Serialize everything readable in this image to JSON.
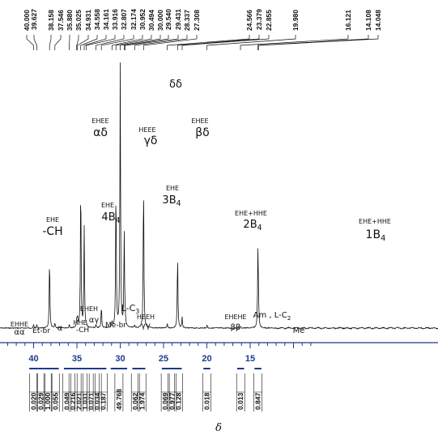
{
  "chart_data": {
    "type": "line",
    "xlabel": "δ",
    "xlim": [
      43,
      7.5
    ],
    "axis_ticks": [
      40,
      35,
      30,
      25,
      20,
      15
    ],
    "top_peak_labels": [
      "40.000",
      "39.627",
      "38.158",
      "37.546",
      "35.880",
      "35.025",
      "34.931",
      "34.558",
      "34.161",
      "33.916",
      "32.807",
      "32.174",
      "30.952",
      "30.494",
      "30.000",
      "29.540",
      "29.431",
      "28.337",
      "27.308",
      "24.566",
      "23.379",
      "22.855",
      "19.980",
      "16.121",
      "14.108",
      "14.048"
    ],
    "peaks": [
      {
        "x": 40.0,
        "y": 0.014
      },
      {
        "x": 39.627,
        "y": 0.012
      },
      {
        "x": 38.158,
        "y": 0.29
      },
      {
        "x": 37.546,
        "y": 0.02
      },
      {
        "x": 35.88,
        "y": 0.014
      },
      {
        "x": 35.025,
        "y": 0.035
      },
      {
        "x": 34.931,
        "y": 0.04
      },
      {
        "x": 34.558,
        "y": 0.62
      },
      {
        "x": 34.161,
        "y": 0.42
      },
      {
        "x": 33.916,
        "y": 0.012
      },
      {
        "x": 32.807,
        "y": 0.012
      },
      {
        "x": 32.174,
        "y": 0.09
      },
      {
        "x": 30.952,
        "y": 0.025
      },
      {
        "x": 30.494,
        "y": 0.6
      },
      {
        "x": 30.0,
        "y": 1.1
      },
      {
        "x": 29.54,
        "y": 0.4
      },
      {
        "x": 29.431,
        "y": 0.03
      },
      {
        "x": 28.337,
        "y": 0.012
      },
      {
        "x": 27.308,
        "y": 0.62
      },
      {
        "x": 24.566,
        "y": 0.018
      },
      {
        "x": 23.379,
        "y": 0.3
      },
      {
        "x": 22.855,
        "y": 0.045
      },
      {
        "x": 19.98,
        "y": 0.012
      },
      {
        "x": 16.121,
        "y": 0.008
      },
      {
        "x": 14.108,
        "y": 0.3
      },
      {
        "x": 14.048,
        "y": 0.1
      }
    ],
    "peak_assignments": [
      {
        "x": 40.0,
        "triad": "EHHE",
        "label": "αα"
      },
      {
        "x": 39.0,
        "triad": "",
        "label": "Et-br"
      },
      {
        "x": 37.6,
        "triad": "",
        "label": "α"
      },
      {
        "x": 38.2,
        "triad": "EHE",
        "label": "-CH"
      },
      {
        "x": 35.9,
        "triad": "HHE",
        "label": "-CH"
      },
      {
        "x": 35.0,
        "triad": "EHEH",
        "label": "αγ"
      },
      {
        "x": 33.6,
        "triad": "",
        "label": "Me-br"
      },
      {
        "x": 34.56,
        "triad": "EHEE",
        "label": "αδ"
      },
      {
        "x": 34.16,
        "triad": "EHE",
        "label": "4B4"
      },
      {
        "x": 32.2,
        "triad": "",
        "label": "L-C3"
      },
      {
        "x": 31.0,
        "triad": "HEEH",
        "label": "γγ"
      },
      {
        "x": 30.5,
        "triad": "HEEE",
        "label": "γδ"
      },
      {
        "x": 30.0,
        "triad": "",
        "label": "δδ"
      },
      {
        "x": 29.54,
        "triad": "EHE",
        "label": "3B4"
      },
      {
        "x": 27.3,
        "triad": "EHEE",
        "label": "βδ"
      },
      {
        "x": 24.6,
        "triad": "EHEHE",
        "label": "ββ"
      },
      {
        "x": 23.4,
        "triad": "EHE+HHE",
        "label": "2B4"
      },
      {
        "x": 22.0,
        "triad": "",
        "label": "Am , L-C2"
      },
      {
        "x": 20.0,
        "triad": "",
        "label": "Me"
      },
      {
        "x": 14.1,
        "triad": "EHE+HHE",
        "label": "1B4"
      }
    ],
    "integrals": [
      {
        "x1": 40.5,
        "x2": 39.5,
        "value": "0.020"
      },
      {
        "x1": 39.5,
        "x2": 38.8,
        "value": "0.029"
      },
      {
        "x1": 38.8,
        "x2": 37.9,
        "value": "1.000"
      },
      {
        "x1": 37.9,
        "x2": 37.1,
        "value": "0.055"
      },
      {
        "x1": 36.5,
        "x2": 35.8,
        "value": "0.049"
      },
      {
        "x1": 35.8,
        "x2": 35.1,
        "value": "0.216"
      },
      {
        "x1": 35.1,
        "x2": 34.4,
        "value": "2.021"
      },
      {
        "x1": 34.4,
        "x2": 33.7,
        "value": "1.031"
      },
      {
        "x1": 33.7,
        "x2": 33.0,
        "value": "0.071"
      },
      {
        "x1": 33.0,
        "x2": 32.3,
        "value": "0.034"
      },
      {
        "x1": 32.3,
        "x2": 31.6,
        "value": "0.187"
      },
      {
        "x1": 31.1,
        "x2": 29.2,
        "value": "49.768"
      },
      {
        "x1": 28.6,
        "x2": 27.9,
        "value": "0.062"
      },
      {
        "x1": 27.9,
        "x2": 27.1,
        "value": "1.974"
      },
      {
        "x1": 25.2,
        "x2": 24.4,
        "value": "0.069"
      },
      {
        "x1": 24.4,
        "x2": 23.6,
        "value": "0.977"
      },
      {
        "x1": 23.6,
        "x2": 22.9,
        "value": "0.128"
      },
      {
        "x1": 20.4,
        "x2": 19.6,
        "value": "0.018"
      },
      {
        "x1": 16.5,
        "x2": 15.7,
        "value": "0.013"
      },
      {
        "x1": 14.5,
        "x2": 13.7,
        "value": "0.847"
      }
    ]
  }
}
